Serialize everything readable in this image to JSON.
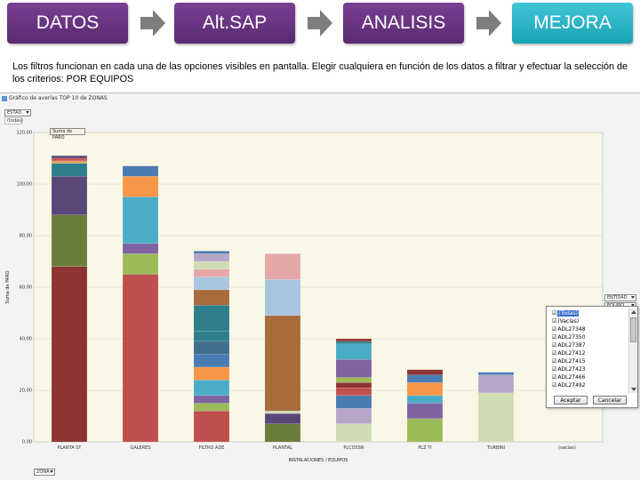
{
  "flow": {
    "steps": [
      "DATOS",
      "Alt.SAP",
      "ANALISIS",
      "MEJORA"
    ]
  },
  "description": "Los filtros funcionan en cada una de las opciones visibles en pantalla. Elegir cualquiera en función de los datos a filtrar y efectuar la selección de los criterios: POR EQUIPOS",
  "window": {
    "title": "Gráfico de averías TOP 10 de ZONAS",
    "filter_top_label": "ESTAD",
    "filter_top_value": "(todas)",
    "series_filter_label": "Suma de PARO",
    "right_filter_1": "ENTIDAD",
    "right_filter_2": "EQUIPO",
    "bottom_filter": "ZONA"
  },
  "dropdown": {
    "items": [
      "(Todas)",
      "(Vacías)",
      "ADL27348",
      "ADL27350",
      "ADL27387",
      "ADL27412",
      "ADL27415",
      "ADL27423",
      "ADL27466",
      "ADL27492"
    ],
    "accept": "Aceptar",
    "cancel": "Cancelar"
  },
  "chart_data": {
    "type": "bar",
    "stacked": true,
    "title": "",
    "ylabel": "Suma de PARO",
    "xlabel": "INSTALACIONES / EQUIPOS",
    "ylim": [
      0,
      120
    ],
    "yticks": [
      "0,00",
      "20,00",
      "40,00",
      "60,00",
      "80,00",
      "100,00",
      "120,00"
    ],
    "grid": true,
    "categories": [
      "PLANTA ST",
      "GALERES",
      "FILTRO ADE",
      "PLANTAL",
      "PLCOSSN",
      "PLZ TI",
      "TURBINI",
      "(vacías)"
    ],
    "colors": [
      "#8e3434",
      "#6b7d3b",
      "#594777",
      "#2e7e8c",
      "#d99b5e",
      "#4b7bb3",
      "#c0504d",
      "#9bbb59",
      "#8064a2",
      "#4bacc6",
      "#f79646",
      "#a9c4df",
      "#e4a8a8",
      "#cfdcb4",
      "#b7a7c9",
      "#a86b3c",
      "#3f6f8d"
    ],
    "stacks": [
      [
        {
          "v": 68,
          "c": 0
        },
        {
          "v": 20,
          "c": 1
        },
        {
          "v": 15,
          "c": 2
        },
        {
          "v": 5,
          "c": 3
        },
        {
          "v": 1,
          "c": 4
        },
        {
          "v": 1,
          "c": 6
        },
        {
          "v": 1,
          "c": 2
        }
      ],
      [
        {
          "v": 65,
          "c": 6
        },
        {
          "v": 8,
          "c": 7
        },
        {
          "v": 4,
          "c": 8
        },
        {
          "v": 18,
          "c": 9
        },
        {
          "v": 8,
          "c": 10
        },
        {
          "v": 4,
          "c": 5
        }
      ],
      [
        {
          "v": 12,
          "c": 6
        },
        {
          "v": 3,
          "c": 7
        },
        {
          "v": 3,
          "c": 8
        },
        {
          "v": 6,
          "c": 9
        },
        {
          "v": 5,
          "c": 10
        },
        {
          "v": 5,
          "c": 5
        },
        {
          "v": 5,
          "c": 16
        },
        {
          "v": 4,
          "c": 3
        },
        {
          "v": 10,
          "c": 3
        },
        {
          "v": 6,
          "c": 15
        },
        {
          "v": 5,
          "c": 11
        },
        {
          "v": 3,
          "c": 12
        },
        {
          "v": 3,
          "c": 13
        },
        {
          "v": 3,
          "c": 14
        },
        {
          "v": 1,
          "c": 5
        }
      ],
      [
        {
          "v": 7,
          "c": 1
        },
        {
          "v": 4,
          "c": 2
        },
        {
          "v": 1,
          "c": 13
        },
        {
          "v": 37,
          "c": 15
        },
        {
          "v": 14,
          "c": 11
        },
        {
          "v": 10,
          "c": 12
        }
      ],
      [
        {
          "v": 7,
          "c": 13
        },
        {
          "v": 6,
          "c": 14
        },
        {
          "v": 5,
          "c": 5
        },
        {
          "v": 3,
          "c": 6
        },
        {
          "v": 2,
          "c": 0
        },
        {
          "v": 2,
          "c": 7
        },
        {
          "v": 7,
          "c": 8
        },
        {
          "v": 6,
          "c": 9
        },
        {
          "v": 1,
          "c": 3
        },
        {
          "v": 1,
          "c": 0
        }
      ],
      [
        {
          "v": 9,
          "c": 7
        },
        {
          "v": 6,
          "c": 8
        },
        {
          "v": 3,
          "c": 9
        },
        {
          "v": 5,
          "c": 10
        },
        {
          "v": 3,
          "c": 5
        },
        {
          "v": 2,
          "c": 0
        }
      ],
      [
        {
          "v": 19,
          "c": 13
        },
        {
          "v": 7,
          "c": 14
        },
        {
          "v": 1,
          "c": 5
        }
      ],
      []
    ]
  }
}
